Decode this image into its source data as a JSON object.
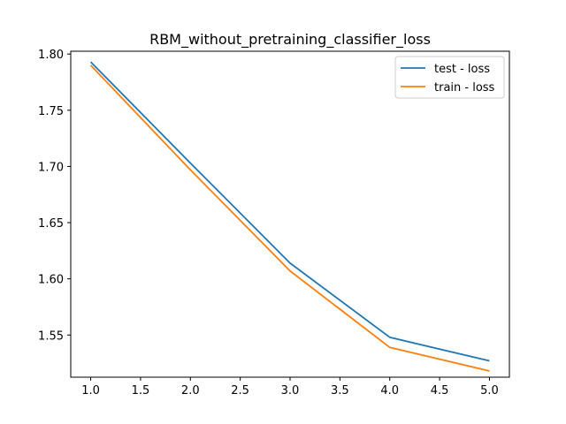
{
  "chart_data": {
    "type": "line",
    "title": "RBM_without_pretraining_classifier_loss",
    "xlabel": "",
    "ylabel": "",
    "x": [
      1.0,
      2.0,
      3.0,
      4.0,
      5.0
    ],
    "xlim": [
      0.8,
      5.2
    ],
    "ylim": [
      1.5125,
      1.8025
    ],
    "xticks": [
      "1.0",
      "1.5",
      "2.0",
      "2.5",
      "3.0",
      "3.5",
      "4.0",
      "4.5",
      "5.0"
    ],
    "yticks": [
      "1.55",
      "1.60",
      "1.65",
      "1.70",
      "1.75",
      "1.80"
    ],
    "grid": false,
    "legend_position": "top-right",
    "series": [
      {
        "name": "test - loss",
        "color": "#1f77b4",
        "values": [
          1.793,
          1.703,
          1.614,
          1.548,
          1.527
        ]
      },
      {
        "name": "train - loss",
        "color": "#ff7f0e",
        "values": [
          1.79,
          1.697,
          1.607,
          1.539,
          1.518
        ]
      }
    ]
  }
}
